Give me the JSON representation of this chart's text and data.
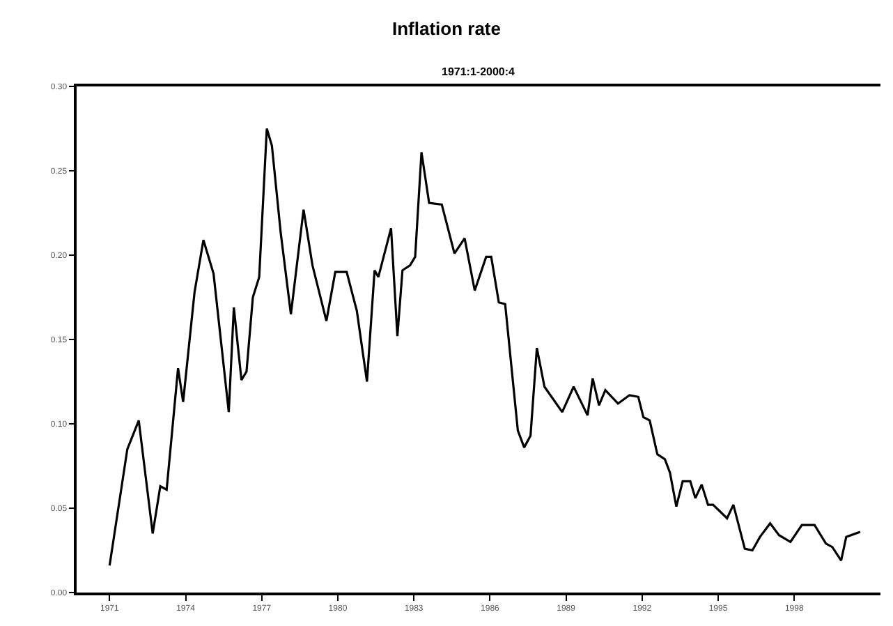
{
  "chart_data": {
    "type": "line",
    "title": "Inflation rate",
    "subtitle": "1971:1-2000:4",
    "x": [
      1971.0,
      1971.7,
      1972.15,
      1972.7,
      1973.0,
      1973.25,
      1973.7,
      1973.9,
      1974.35,
      1974.7,
      1975.1,
      1975.7,
      1975.9,
      1976.2,
      1976.4,
      1976.65,
      1976.9,
      1977.2,
      1977.4,
      1977.75,
      1978.15,
      1978.65,
      1979.0,
      1979.55,
      1979.9,
      1980.35,
      1980.75,
      1981.15,
      1981.45,
      1981.6,
      1982.1,
      1982.35,
      1982.55,
      1982.85,
      1983.05,
      1983.3,
      1983.6,
      1984.1,
      1984.6,
      1985.0,
      1985.4,
      1985.85,
      1986.05,
      1986.35,
      1986.6,
      1987.1,
      1987.35,
      1987.6,
      1987.85,
      1988.15,
      1988.85,
      1989.3,
      1989.85,
      1990.05,
      1990.3,
      1990.55,
      1991.05,
      1991.5,
      1991.85,
      1992.05,
      1992.3,
      1992.6,
      1992.9,
      1993.1,
      1993.35,
      1993.6,
      1993.9,
      1994.1,
      1994.35,
      1994.6,
      1994.8,
      1995.35,
      1995.6,
      1996.05,
      1996.35,
      1996.65,
      1997.05,
      1997.4,
      1997.85,
      1998.3,
      1998.8,
      1999.25,
      1999.5,
      1999.85,
      2000.05,
      2000.6
    ],
    "series": [
      {
        "color": "#000000",
        "values": [
          0.016,
          0.085,
          0.102,
          0.035,
          0.063,
          0.061,
          0.133,
          0.113,
          0.178,
          0.209,
          0.189,
          0.107,
          0.169,
          0.126,
          0.131,
          0.175,
          0.187,
          0.275,
          0.265,
          0.213,
          0.165,
          0.227,
          0.194,
          0.161,
          0.19,
          0.19,
          0.167,
          0.125,
          0.191,
          0.187,
          0.216,
          0.152,
          0.191,
          0.194,
          0.199,
          0.261,
          0.231,
          0.23,
          0.201,
          0.21,
          0.179,
          0.199,
          0.199,
          0.172,
          0.171,
          0.096,
          0.086,
          0.093,
          0.145,
          0.122,
          0.107,
          0.122,
          0.105,
          0.127,
          0.111,
          0.12,
          0.112,
          0.117,
          0.116,
          0.104,
          0.102,
          0.082,
          0.079,
          0.071,
          0.051,
          0.066,
          0.066,
          0.056,
          0.064,
          0.052,
          0.052,
          0.044,
          0.052,
          0.026,
          0.025,
          0.033,
          0.041,
          0.034,
          0.03,
          0.04,
          0.04,
          0.029,
          0.027,
          0.019,
          0.033,
          0.036
        ]
      }
    ],
    "xlim": [
      1969.7,
      2001.4
    ],
    "xticks": [
      1971,
      1974,
      1977,
      1980,
      1983,
      1986,
      1989,
      1992,
      1995,
      1998
    ],
    "ylim": [
      0,
      0.3
    ],
    "yticks": [
      {
        "value": 0,
        "label": "0.00"
      },
      {
        "value": 0.05,
        "label": "0.05"
      },
      {
        "value": 0.1,
        "label": "0.10"
      },
      {
        "value": 0.15,
        "label": "0.15"
      },
      {
        "value": 0.2,
        "label": "0.20"
      },
      {
        "value": 0.25,
        "label": "0.25"
      },
      {
        "value": 0.3,
        "label": "0.30"
      }
    ],
    "marker": "none",
    "line_style": "solid"
  }
}
